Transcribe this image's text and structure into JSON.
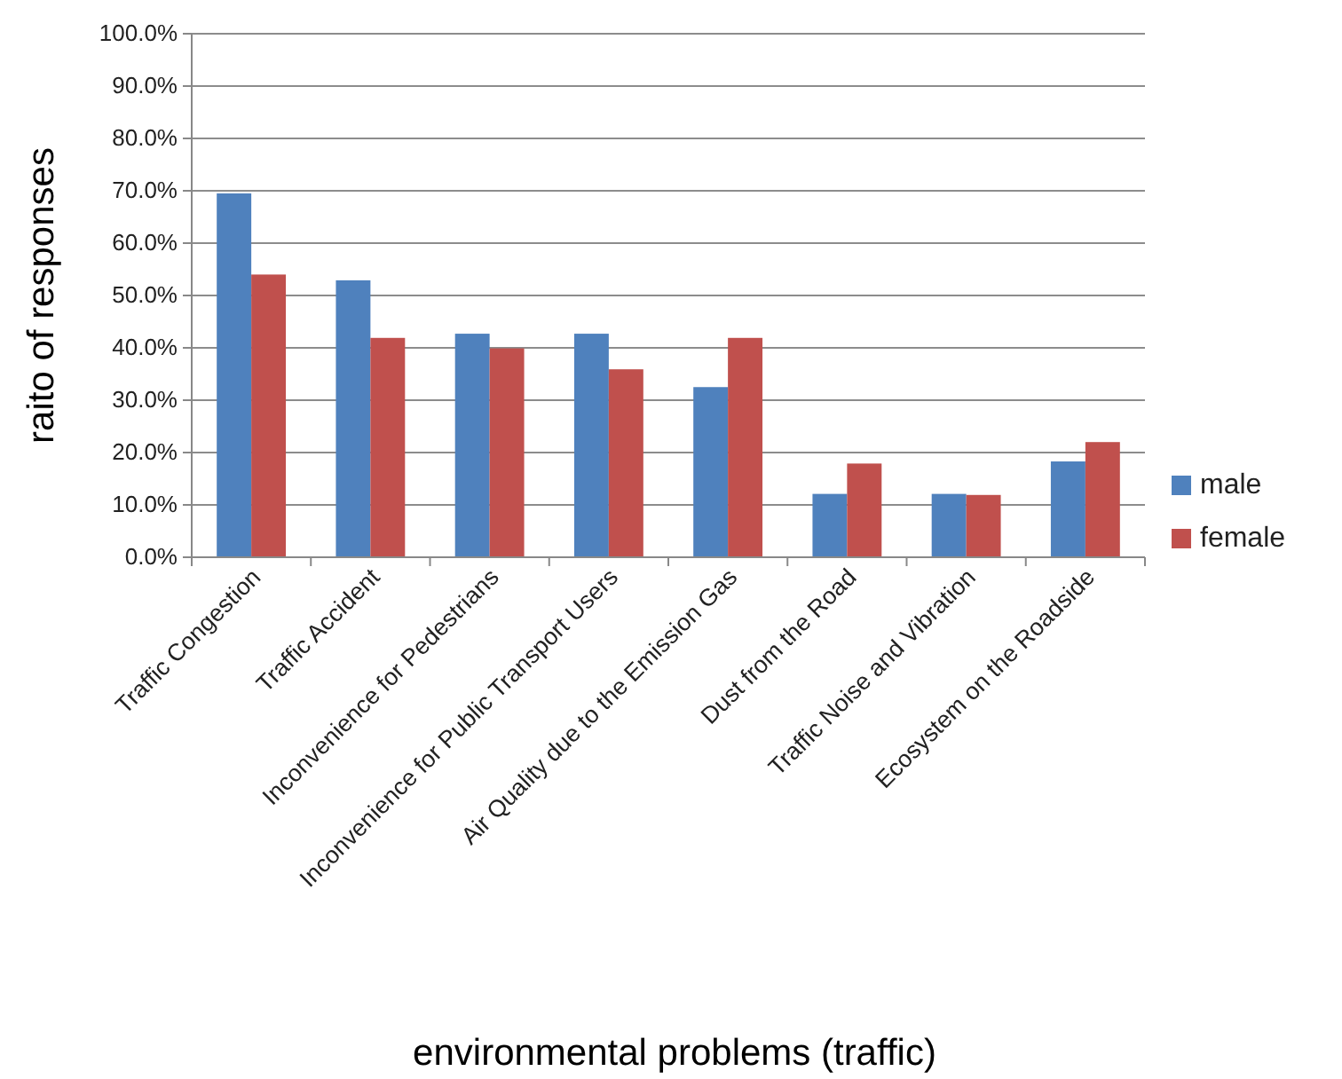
{
  "chart_data": {
    "type": "bar",
    "xlabel": "environmental problems (traffic)",
    "ylabel": "raito of responses",
    "categories": [
      "Traffic Congestion",
      "Traffic Accident",
      "Inconvenience for Pedestrians",
      "Inconvenience for Public Transport Users",
      "Air Quality due to the Emission Gas",
      "Dust from the Road",
      "Traffic Noise and Vibration",
      "Ecosystem on the Roadside"
    ],
    "series": [
      {
        "name": "male",
        "color": "#4f81bd",
        "values": [
          69.5,
          52.9,
          42.7,
          42.7,
          32.5,
          12.1,
          12.1,
          18.3
        ]
      },
      {
        "name": "female",
        "color": "#c0504d",
        "values": [
          54,
          41.9,
          39.9,
          35.9,
          41.9,
          17.9,
          11.9,
          22
        ]
      }
    ],
    "ylim": [
      0,
      100
    ],
    "yticks": [
      {
        "value": 0,
        "label": "0.0%"
      },
      {
        "value": 10,
        "label": "10.0%"
      },
      {
        "value": 20,
        "label": "20.0%"
      },
      {
        "value": 30,
        "label": "30.0%"
      },
      {
        "value": 40,
        "label": "40.0%"
      },
      {
        "value": 50,
        "label": "50.0%"
      },
      {
        "value": 60,
        "label": "60.0%"
      },
      {
        "value": 70,
        "label": "70.0%"
      },
      {
        "value": 80,
        "label": "80.0%"
      },
      {
        "value": 90,
        "label": "90.0%"
      },
      {
        "value": 100,
        "label": "100.0%"
      }
    ],
    "grid": "y",
    "legend": "right"
  }
}
